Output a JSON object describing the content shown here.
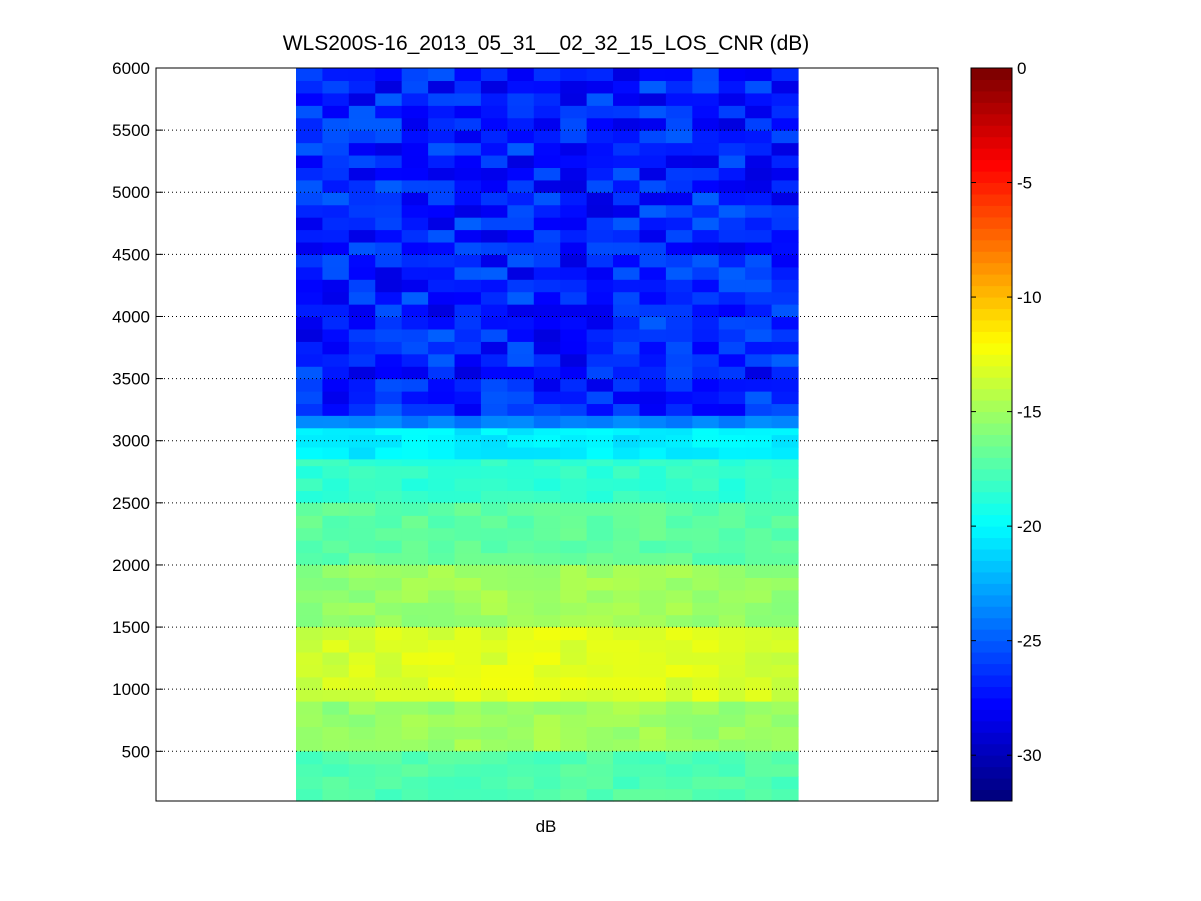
{
  "chart_data": {
    "type": "heatmap",
    "title": "WLS200S-16_2013_05_31__02_32_15_LOS_CNR (dB)",
    "xlabel": "dB",
    "ylabel": "",
    "ylim": [
      100,
      6000
    ],
    "yticks": [
      500,
      1000,
      1500,
      2000,
      2500,
      3000,
      3500,
      4000,
      4500,
      5000,
      5500,
      6000
    ],
    "ygrid": true,
    "colormap": "jet",
    "colorbar": {
      "range": [
        -32,
        0
      ],
      "ticks": [
        0,
        -5,
        -10,
        -15,
        -20,
        -25,
        -30
      ],
      "placement": "right"
    },
    "columns": 19,
    "range_bands": [
      {
        "range": [
          3200,
          6000
        ],
        "cnr_db": -27
      },
      {
        "range": [
          3100,
          3200
        ],
        "cnr_db": -24
      },
      {
        "range": [
          2850,
          3100
        ],
        "cnr_db": -20.5
      },
      {
        "range": [
          2500,
          2850
        ],
        "cnr_db": -18.5
      },
      {
        "range": [
          2000,
          2500
        ],
        "cnr_db": -17
      },
      {
        "range": [
          1500,
          2000
        ],
        "cnr_db": -15.5
      },
      {
        "range": [
          900,
          1500
        ],
        "cnr_db": -13.5
      },
      {
        "range": [
          500,
          900
        ],
        "cnr_db": -15.5
      },
      {
        "range": [
          100,
          500
        ],
        "cnr_db": -17.5
      }
    ]
  }
}
